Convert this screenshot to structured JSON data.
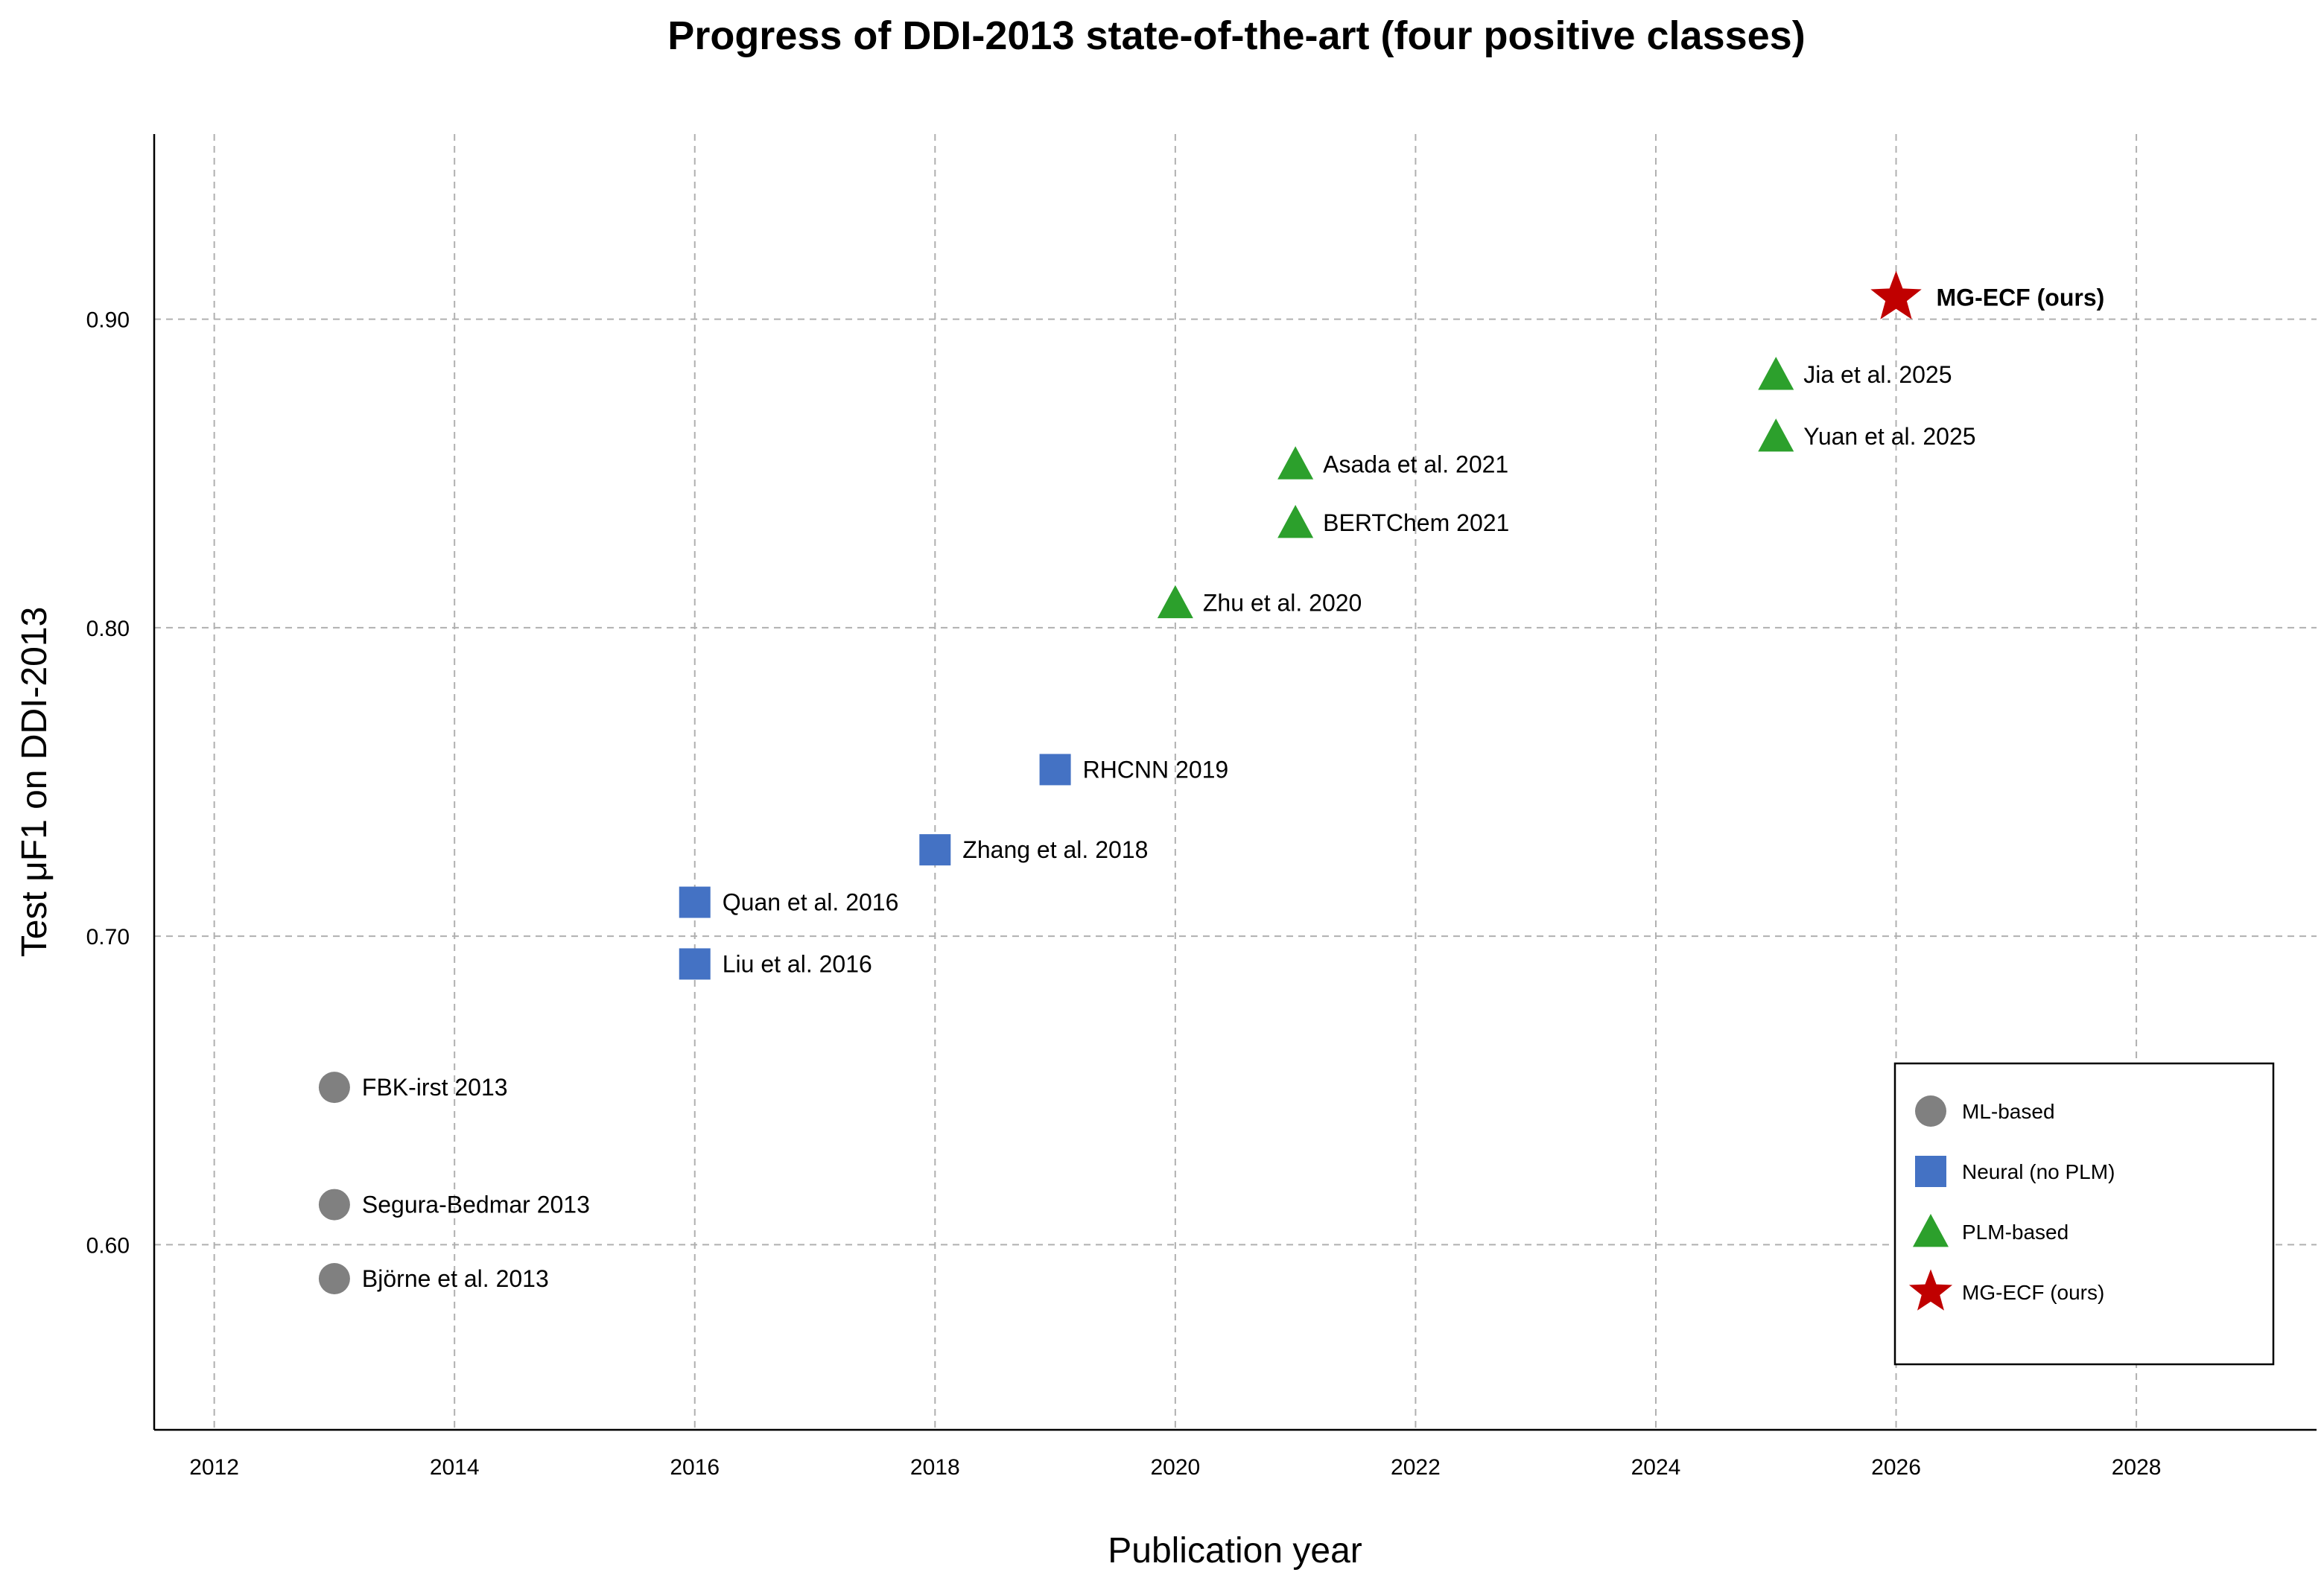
{
  "chart_data": {
    "type": "scatter",
    "title": "Progress of DDI-2013 state-of-the-art (four positive classes)",
    "xlabel": "Publication year",
    "ylabel": "Test μF1 on DDI-2013",
    "xlim": [
      2011.5,
      2029.5
    ],
    "ylim": [
      0.54,
      0.96
    ],
    "x_ticks": [
      2012,
      2014,
      2016,
      2018,
      2020,
      2022,
      2024,
      2026,
      2028
    ],
    "y_ticks": [
      0.6,
      0.7,
      0.8,
      0.9
    ],
    "y_tick_labels": [
      "0.60",
      "0.70",
      "0.80",
      "0.90"
    ],
    "grid": true,
    "legend_position": "bottom-right",
    "categories": {
      "ml": {
        "name": "ML-based",
        "marker": "circle",
        "color": "#808080"
      },
      "neural": {
        "name": "Neural (no PLM)",
        "marker": "square",
        "color": "#4472C4"
      },
      "plm": {
        "name": "PLM-based",
        "marker": "triangle",
        "color": "#2CA02C"
      },
      "ours": {
        "name": "MG-ECF (ours)",
        "marker": "star",
        "color": "#C00000"
      }
    },
    "legend_order": [
      "ml",
      "neural",
      "plm",
      "ours"
    ],
    "points": [
      {
        "label": "FBK-irst 2013",
        "x": 2013,
        "y": 0.651,
        "category": "ml"
      },
      {
        "label": "Segura-Bedmar 2013",
        "x": 2013,
        "y": 0.613,
        "category": "ml"
      },
      {
        "label": "Björne et al. 2013",
        "x": 2013,
        "y": 0.589,
        "category": "ml"
      },
      {
        "label": "Quan et al. 2016",
        "x": 2016,
        "y": 0.711,
        "category": "neural"
      },
      {
        "label": "Liu et al. 2016",
        "x": 2016,
        "y": 0.691,
        "category": "neural"
      },
      {
        "label": "Zhang et al. 2018",
        "x": 2018,
        "y": 0.728,
        "category": "neural"
      },
      {
        "label": "RHCNN 2019",
        "x": 2019,
        "y": 0.754,
        "category": "neural"
      },
      {
        "label": "Zhu et al. 2020",
        "x": 2020,
        "y": 0.808,
        "category": "plm"
      },
      {
        "label": "Asada et al. 2021",
        "x": 2021,
        "y": 0.853,
        "category": "plm"
      },
      {
        "label": "BERTChem 2021",
        "x": 2021,
        "y": 0.834,
        "category": "plm"
      },
      {
        "label": "Jia et al. 2025",
        "x": 2025,
        "y": 0.882,
        "category": "plm"
      },
      {
        "label": "Yuan et al. 2025",
        "x": 2025,
        "y": 0.862,
        "category": "plm"
      },
      {
        "label": "MG-ECF (ours)",
        "x": 2026,
        "y": 0.907,
        "category": "ours",
        "label_bold": true
      }
    ]
  }
}
